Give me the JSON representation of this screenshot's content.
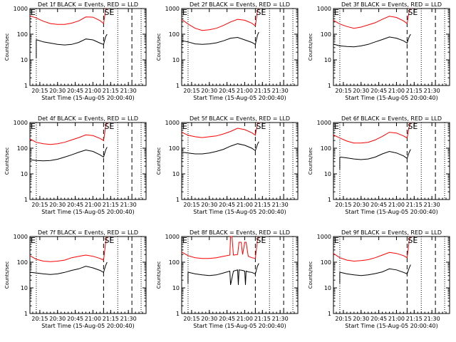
{
  "chart_data": [
    {
      "type": "line",
      "title": "Det 1f BLACK = Events, RED = LLD",
      "xlabel": "Start Time (15-Aug-05 20:00:40)",
      "ylabel": "Counts/sec",
      "xlim": [
        20.11,
        21.75
      ],
      "ylim": [
        1,
        1000
      ],
      "x_ticks": [
        "20:15",
        "20:30",
        "20:45",
        "21:00",
        "21:15",
        "21:30"
      ],
      "y_ticks": [
        "1",
        "10",
        "100",
        "1000"
      ],
      "annotations": [
        "E",
        "SE"
      ],
      "series": [
        {
          "name": "LLD",
          "color": "#ff0000",
          "x": [
            20.11,
            20.2,
            20.3,
            20.4,
            20.5,
            20.6,
            20.7,
            20.8,
            20.9,
            21.0,
            21.1,
            21.15,
            21.18,
            21.2
          ],
          "y": [
            520,
            430,
            320,
            260,
            240,
            240,
            270,
            330,
            470,
            460,
            340,
            260,
            900,
            1000
          ]
        },
        {
          "name": "Events",
          "color": "#000000",
          "x": [
            20.2,
            20.2,
            20.21,
            20.3,
            20.4,
            20.5,
            20.6,
            20.7,
            20.8,
            20.9,
            21.0,
            21.1,
            21.15,
            21.18,
            21.2
          ],
          "y": [
            12,
            60,
            60,
            50,
            45,
            40,
            38,
            40,
            48,
            65,
            60,
            45,
            40,
            80,
            100
          ]
        }
      ]
    },
    {
      "type": "line",
      "title": "Det 2f BLACK = Events, RED = LLD",
      "xlabel": "Start Time (15-Aug-05 20:00:40)",
      "ylabel": "Counts/sec",
      "xlim": [
        20.11,
        21.75
      ],
      "ylim": [
        1,
        1000
      ],
      "x_ticks": [
        "20:15",
        "20:30",
        "20:45",
        "21:00",
        "21:15",
        "21:30"
      ],
      "y_ticks": [
        "1",
        "10",
        "100",
        "1000"
      ],
      "annotations": [
        "E",
        "SE"
      ],
      "series": [
        {
          "name": "LLD",
          "color": "#ff0000",
          "x": [
            20.11,
            20.2,
            20.3,
            20.4,
            20.5,
            20.6,
            20.7,
            20.8,
            20.9,
            21.0,
            21.1,
            21.15,
            21.18,
            21.2
          ],
          "y": [
            380,
            250,
            170,
            140,
            150,
            170,
            220,
            300,
            380,
            350,
            270,
            210,
            800,
            1000
          ]
        },
        {
          "name": "Events",
          "color": "#000000",
          "x": [
            20.11,
            20.11,
            20.12,
            20.2,
            20.3,
            20.4,
            20.5,
            20.6,
            20.7,
            20.8,
            20.9,
            21.0,
            21.1,
            21.15,
            21.18,
            21.2
          ],
          "y": [
            15,
            55,
            55,
            50,
            42,
            40,
            42,
            46,
            55,
            70,
            75,
            60,
            48,
            40,
            90,
            120
          ]
        }
      ]
    },
    {
      "type": "line",
      "title": "Det 3f BLACK = Events, RED = LLD",
      "xlabel": "Start Time (15-Aug-05 20:00:40)",
      "ylabel": "Counts/sec",
      "xlim": [
        20.11,
        21.75
      ],
      "ylim": [
        1,
        1000
      ],
      "x_ticks": [
        "20:15",
        "20:30",
        "20:45",
        "21:00",
        "21:15",
        "21:30"
      ],
      "y_ticks": [
        "1",
        "10",
        "100",
        "1000"
      ],
      "annotations": [
        "E",
        "SE"
      ],
      "series": [
        {
          "name": "LLD",
          "color": "#ff0000",
          "x": [
            20.11,
            20.2,
            20.3,
            20.4,
            20.5,
            20.6,
            20.7,
            20.8,
            20.9,
            21.0,
            21.1,
            21.15,
            21.18,
            21.2
          ],
          "y": [
            350,
            250,
            200,
            170,
            190,
            230,
            280,
            380,
            500,
            450,
            330,
            260,
            800,
            1000
          ]
        },
        {
          "name": "Events",
          "color": "#000000",
          "x": [
            20.11,
            20.11,
            20.12,
            20.2,
            20.3,
            20.4,
            20.5,
            20.6,
            20.7,
            20.8,
            20.9,
            21.0,
            21.1,
            21.15,
            21.18,
            21.2
          ],
          "y": [
            15,
            40,
            40,
            35,
            33,
            32,
            35,
            40,
            50,
            62,
            78,
            70,
            55,
            45,
            80,
            100
          ]
        }
      ]
    },
    {
      "type": "line",
      "title": "Det 4f BLACK = Events, RED = LLD",
      "xlabel": "Start Time (15-Aug-05 20:00:40)",
      "ylabel": "Counts/sec",
      "xlim": [
        20.11,
        21.75
      ],
      "ylim": [
        1,
        1000
      ],
      "x_ticks": [
        "20:15",
        "20:30",
        "20:45",
        "21:00",
        "21:15",
        "21:30"
      ],
      "y_ticks": [
        "1",
        "10",
        "100",
        "1000"
      ],
      "annotations": [
        "E",
        "SE"
      ],
      "series": [
        {
          "name": "LLD",
          "color": "#ff0000",
          "x": [
            20.11,
            20.2,
            20.3,
            20.4,
            20.5,
            20.6,
            20.7,
            20.8,
            20.9,
            21.0,
            21.1,
            21.15,
            21.18,
            21.2
          ],
          "y": [
            230,
            170,
            150,
            140,
            150,
            170,
            210,
            260,
            330,
            310,
            240,
            200,
            700,
            1000
          ]
        },
        {
          "name": "Events",
          "color": "#000000",
          "x": [
            20.11,
            20.11,
            20.12,
            20.2,
            20.3,
            20.4,
            20.5,
            20.6,
            20.7,
            20.8,
            20.9,
            21.0,
            21.1,
            21.15,
            21.18,
            21.2
          ],
          "y": [
            15,
            35,
            35,
            33,
            32,
            33,
            37,
            45,
            55,
            70,
            85,
            75,
            55,
            45,
            85,
            110
          ]
        }
      ]
    },
    {
      "type": "line",
      "title": "Det 5f BLACK = Events, RED = LLD",
      "xlabel": "Start Time (15-Aug-05 20:00:40)",
      "ylabel": "Counts/sec",
      "xlim": [
        20.11,
        21.75
      ],
      "ylim": [
        1,
        1000
      ],
      "x_ticks": [
        "20:15",
        "20:30",
        "20:45",
        "21:00",
        "21:15",
        "21:30"
      ],
      "y_ticks": [
        "1",
        "10",
        "100",
        "1000"
      ],
      "annotations": [
        "E",
        "SE"
      ],
      "series": [
        {
          "name": "LLD",
          "color": "#ff0000",
          "x": [
            20.11,
            20.2,
            20.3,
            20.4,
            20.5,
            20.6,
            20.7,
            20.8,
            20.9,
            21.0,
            21.1,
            21.15,
            21.18,
            21.2
          ],
          "y": [
            420,
            320,
            280,
            260,
            280,
            300,
            360,
            450,
            600,
            530,
            400,
            320,
            900,
            1000
          ]
        },
        {
          "name": "Events",
          "color": "#000000",
          "x": [
            20.11,
            20.11,
            20.12,
            20.2,
            20.3,
            20.4,
            20.5,
            20.6,
            20.7,
            20.8,
            20.9,
            21.0,
            21.1,
            21.15,
            21.18,
            21.2
          ],
          "y": [
            20,
            70,
            70,
            65,
            60,
            60,
            65,
            75,
            90,
            120,
            150,
            130,
            100,
            80,
            140,
            180
          ]
        }
      ]
    },
    {
      "type": "line",
      "title": "Det 6f BLACK = Events, RED = LLD",
      "xlabel": "Start Time (15-Aug-05 20:00:40)",
      "ylabel": "Counts/sec",
      "xlim": [
        20.11,
        21.75
      ],
      "ylim": [
        1,
        1000
      ],
      "x_ticks": [
        "20:15",
        "20:30",
        "20:45",
        "21:00",
        "21:15",
        "21:30"
      ],
      "y_ticks": [
        "1",
        "10",
        "100",
        "1000"
      ],
      "annotations": [
        "E",
        "SE"
      ],
      "series": [
        {
          "name": "LLD",
          "color": "#ff0000",
          "x": [
            20.11,
            20.2,
            20.3,
            20.4,
            20.5,
            20.6,
            20.7,
            20.8,
            20.9,
            21.0,
            21.1,
            21.15,
            21.18,
            21.2
          ],
          "y": [
            330,
            250,
            190,
            160,
            160,
            170,
            210,
            290,
            420,
            390,
            300,
            250,
            700,
            1000
          ]
        },
        {
          "name": "Events",
          "color": "#000000",
          "x": [
            20.2,
            20.2,
            20.21,
            20.3,
            20.4,
            20.5,
            20.6,
            20.7,
            20.8,
            20.9,
            21.0,
            21.1,
            21.15,
            21.18,
            21.2
          ],
          "y": [
            15,
            45,
            45,
            42,
            38,
            36,
            38,
            45,
            60,
            75,
            65,
            50,
            40,
            70,
            90
          ]
        }
      ]
    },
    {
      "type": "line",
      "title": "Det 7f BLACK = Events, RED = LLD",
      "xlabel": "Start Time (15-Aug-05 20:00:40)",
      "ylabel": "Counts/sec",
      "xlim": [
        20.11,
        21.75
      ],
      "ylim": [
        1,
        1000
      ],
      "x_ticks": [
        "20:15",
        "20:30",
        "20:45",
        "21:00",
        "21:15",
        "21:30"
      ],
      "y_ticks": [
        "1",
        "10",
        "100",
        "1000"
      ],
      "annotations": [
        "E",
        "SE"
      ],
      "series": [
        {
          "name": "LLD",
          "color": "#ff0000",
          "x": [
            20.11,
            20.2,
            20.3,
            20.4,
            20.5,
            20.6,
            20.7,
            20.8,
            20.9,
            21.0,
            21.1,
            21.15,
            21.18,
            21.2
          ],
          "y": [
            180,
            130,
            110,
            105,
            110,
            120,
            150,
            170,
            190,
            170,
            140,
            120,
            600,
            1000
          ]
        },
        {
          "name": "Events",
          "color": "#000000",
          "x": [
            20.11,
            20.11,
            20.12,
            20.2,
            20.3,
            20.4,
            20.5,
            20.6,
            20.7,
            20.8,
            20.9,
            21.0,
            21.1,
            21.15,
            21.18,
            21.2
          ],
          "y": [
            12,
            40,
            40,
            38,
            35,
            33,
            35,
            40,
            48,
            55,
            70,
            60,
            48,
            40,
            75,
            100
          ]
        }
      ]
    },
    {
      "type": "line",
      "title": "Det 8f BLACK = Events, RED = LLD",
      "xlabel": "Start Time (15-Aug-05 20:00:40)",
      "ylabel": "Counts/sec",
      "xlim": [
        20.11,
        21.75
      ],
      "ylim": [
        1,
        1000
      ],
      "x_ticks": [
        "20:15",
        "20:30",
        "20:45",
        "21:00",
        "21:15",
        "21:30"
      ],
      "y_ticks": [
        "1",
        "10",
        "100",
        "1000"
      ],
      "annotations": [
        "E",
        "SE"
      ],
      "series": [
        {
          "name": "LLD",
          "color": "#ff0000",
          "x": [
            20.11,
            20.2,
            20.3,
            20.4,
            20.5,
            20.6,
            20.7,
            20.79,
            20.8,
            20.82,
            20.84,
            20.9,
            20.92,
            20.95,
            20.97,
            21.0,
            21.02,
            21.05,
            21.1,
            21.15,
            21.18,
            21.2
          ],
          "y": [
            250,
            180,
            150,
            140,
            140,
            150,
            170,
            190,
            1000,
            1000,
            190,
            200,
            600,
            600,
            200,
            600,
            600,
            170,
            150,
            140,
            700,
            1000
          ]
        },
        {
          "name": "Events",
          "color": "#000000",
          "x": [
            20.2,
            20.2,
            20.21,
            20.3,
            20.4,
            20.5,
            20.6,
            20.7,
            20.79,
            20.8,
            20.84,
            20.9,
            20.91,
            20.92,
            20.97,
            21.0,
            21.01,
            21.02,
            21.05,
            21.1,
            21.15,
            21.18,
            21.2
          ],
          "y": [
            15,
            40,
            40,
            35,
            32,
            30,
            32,
            38,
            45,
            13,
            45,
            50,
            13,
            50,
            48,
            45,
            13,
            45,
            42,
            40,
            35,
            70,
            90
          ]
        }
      ]
    },
    {
      "type": "line",
      "title": "Det 9f BLACK = Events, RED = LLD",
      "xlabel": "Start Time (15-Aug-05 20:00:40)",
      "ylabel": "Counts/sec",
      "xlim": [
        20.11,
        21.75
      ],
      "ylim": [
        1,
        1000
      ],
      "x_ticks": [
        "20:15",
        "20:30",
        "20:45",
        "21:00",
        "21:15",
        "21:30"
      ],
      "y_ticks": [
        "1",
        "10",
        "100",
        "1000"
      ],
      "annotations": [
        "E",
        "SE"
      ],
      "series": [
        {
          "name": "LLD",
          "color": "#ff0000",
          "x": [
            20.11,
            20.2,
            20.3,
            20.4,
            20.5,
            20.6,
            20.7,
            20.8,
            20.9,
            21.0,
            21.1,
            21.15,
            21.18,
            21.2
          ],
          "y": [
            220,
            150,
            120,
            110,
            115,
            125,
            150,
            190,
            240,
            220,
            180,
            150,
            700,
            1000
          ]
        },
        {
          "name": "Events",
          "color": "#000000",
          "x": [
            20.2,
            20.2,
            20.21,
            20.3,
            20.4,
            20.5,
            20.6,
            20.7,
            20.8,
            20.9,
            21.0,
            21.1,
            21.15,
            21.18,
            21.2
          ],
          "y": [
            15,
            40,
            40,
            35,
            32,
            30,
            32,
            36,
            42,
            55,
            50,
            40,
            35,
            60,
            80
          ]
        }
      ]
    }
  ],
  "x_tick_values": [
    20.25,
    20.5,
    20.75,
    21.0,
    21.25,
    21.5
  ],
  "y_tick_values": [
    1,
    10,
    100,
    1000
  ],
  "markers": {
    "dotted_x": [
      20.2,
      21.35,
      21.68
    ],
    "dashed_x": [
      21.15,
      21.55
    ]
  }
}
